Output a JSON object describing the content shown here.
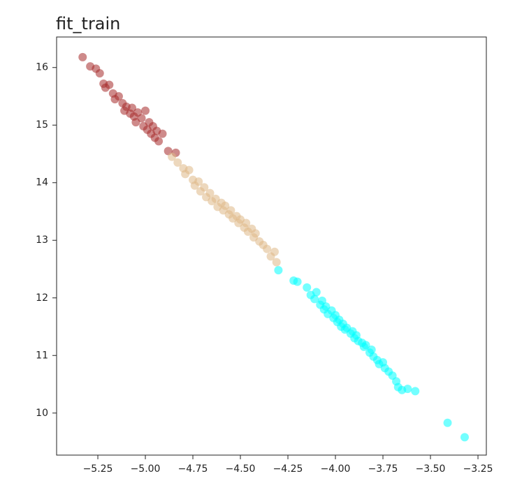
{
  "chart_data": {
    "type": "scatter",
    "title": "fit_train",
    "xlim": [
      -5.467,
      -3.206
    ],
    "ylim": [
      9.27,
      16.53
    ],
    "xticks": [
      {
        "value": -5.25,
        "label": "−5.25"
      },
      {
        "value": -5.0,
        "label": "−5.00"
      },
      {
        "value": -4.75,
        "label": "−4.75"
      },
      {
        "value": -4.5,
        "label": "−4.50"
      },
      {
        "value": -4.25,
        "label": "−4.25"
      },
      {
        "value": -4.0,
        "label": "−4.00"
      },
      {
        "value": -3.75,
        "label": "−3.75"
      },
      {
        "value": -3.5,
        "label": "−3.50"
      },
      {
        "value": -3.25,
        "label": "−3.25"
      }
    ],
    "yticks": [
      10,
      11,
      12,
      13,
      14,
      15,
      16
    ],
    "series": [
      {
        "color": "#a52a2a",
        "x": [
          -5.33,
          -5.29,
          -5.26,
          -5.24,
          -5.22,
          -5.21,
          -5.19,
          -5.17,
          -5.16,
          -5.14,
          -5.12,
          -5.11,
          -5.1,
          -5.08,
          -5.07,
          -5.06,
          -5.05,
          -5.04,
          -5.02,
          -5.01,
          -5.0,
          -4.99,
          -4.98,
          -4.97,
          -4.96,
          -4.95,
          -4.94,
          -4.93,
          -4.91,
          -4.88,
          -4.84
        ],
        "values": [
          16.18,
          16.02,
          15.98,
          15.9,
          15.72,
          15.65,
          15.7,
          15.55,
          15.45,
          15.5,
          15.38,
          15.25,
          15.32,
          15.2,
          15.3,
          15.15,
          15.05,
          15.22,
          15.12,
          14.98,
          15.25,
          14.92,
          15.05,
          14.85,
          14.98,
          14.78,
          14.9,
          14.72,
          14.85,
          14.55,
          14.52
        ]
      },
      {
        "color": "#deb887",
        "x": [
          -4.86,
          -4.83,
          -4.8,
          -4.79,
          -4.77,
          -4.75,
          -4.74,
          -4.72,
          -4.71,
          -4.69,
          -4.68,
          -4.66,
          -4.65,
          -4.63,
          -4.62,
          -4.6,
          -4.59,
          -4.58,
          -4.56,
          -4.55,
          -4.54,
          -4.52,
          -4.51,
          -4.5,
          -4.48,
          -4.47,
          -4.46,
          -4.44,
          -4.43,
          -4.42,
          -4.4,
          -4.38,
          -4.36,
          -4.34,
          -4.32,
          -4.31
        ],
        "values": [
          14.45,
          14.35,
          14.25,
          14.15,
          14.22,
          14.05,
          13.95,
          14.02,
          13.85,
          13.92,
          13.75,
          13.82,
          13.68,
          13.72,
          13.58,
          13.65,
          13.52,
          13.6,
          13.45,
          13.52,
          13.38,
          13.42,
          13.3,
          13.36,
          13.22,
          13.3,
          13.15,
          13.2,
          13.05,
          13.12,
          12.98,
          12.92,
          12.85,
          12.72,
          12.8,
          12.62
        ]
      },
      {
        "color": "#00ffff",
        "x": [
          -4.3,
          -4.22,
          -4.2,
          -4.15,
          -4.13,
          -4.11,
          -4.1,
          -4.08,
          -4.07,
          -4.06,
          -4.05,
          -4.04,
          -4.02,
          -4.01,
          -4.0,
          -3.99,
          -3.98,
          -3.97,
          -3.96,
          -3.95,
          -3.94,
          -3.92,
          -3.91,
          -3.9,
          -3.89,
          -3.88,
          -3.86,
          -3.85,
          -3.84,
          -3.82,
          -3.81,
          -3.8,
          -3.78,
          -3.77,
          -3.75,
          -3.74,
          -3.72,
          -3.7,
          -3.68,
          -3.67,
          -3.65,
          -3.62,
          -3.58,
          -3.41,
          -3.32
        ],
        "values": [
          12.48,
          12.3,
          12.28,
          12.18,
          12.05,
          11.98,
          12.1,
          11.88,
          11.95,
          11.8,
          11.85,
          11.72,
          11.78,
          11.65,
          11.7,
          11.58,
          11.62,
          11.5,
          11.55,
          11.45,
          11.48,
          11.38,
          11.42,
          11.3,
          11.35,
          11.25,
          11.22,
          11.15,
          11.18,
          11.05,
          11.1,
          10.98,
          10.92,
          10.85,
          10.88,
          10.78,
          10.72,
          10.65,
          10.55,
          10.45,
          10.4,
          10.42,
          10.38,
          9.83,
          9.58
        ]
      }
    ]
  }
}
